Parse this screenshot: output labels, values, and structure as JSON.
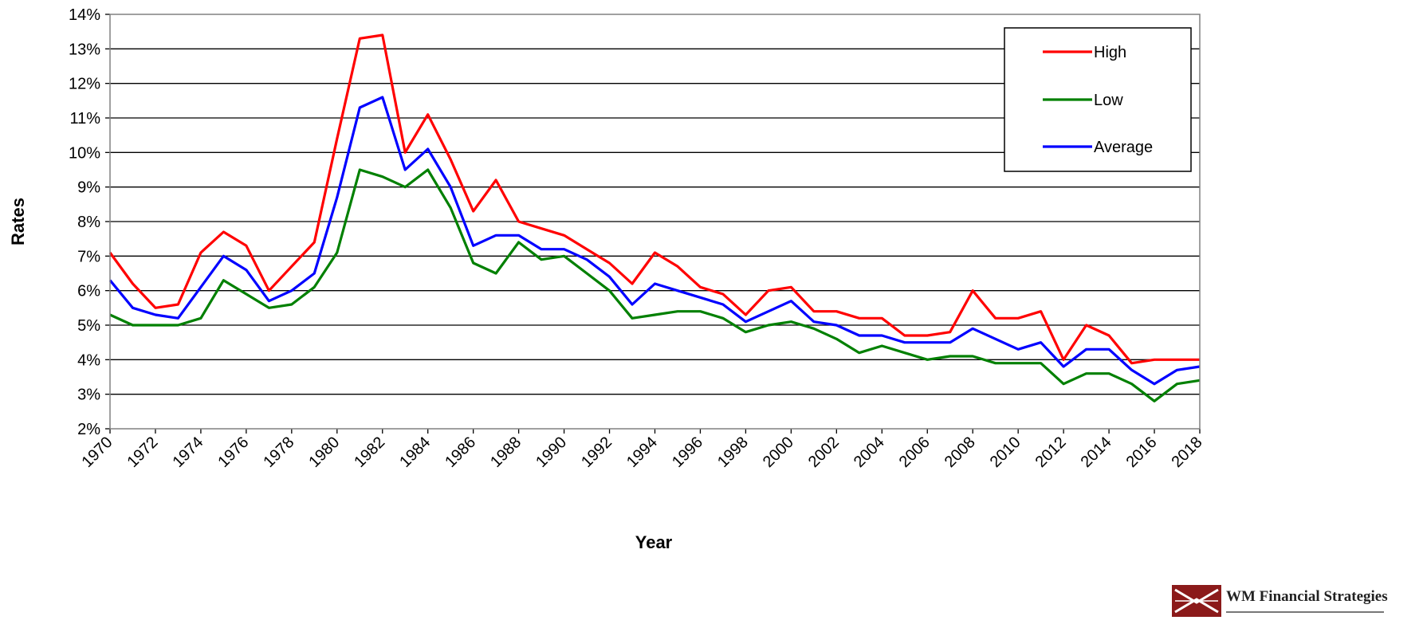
{
  "brand": {
    "name": "WM Financial Strategies",
    "logo_color": "#8b1a1a"
  },
  "chart_data": {
    "type": "line",
    "title": "",
    "xlabel": "Year",
    "ylabel": "Rates",
    "ylim": [
      2,
      14
    ],
    "y_ticks": [
      "2%",
      "3%",
      "4%",
      "5%",
      "6%",
      "7%",
      "8%",
      "9%",
      "10%",
      "11%",
      "12%",
      "13%",
      "14%"
    ],
    "x_ticks": [
      "1970",
      "1972",
      "1974",
      "1976",
      "1978",
      "1980",
      "1982",
      "1984",
      "1986",
      "1988",
      "1990",
      "1992",
      "1994",
      "1996",
      "1998",
      "2000",
      "2002",
      "2004",
      "2006",
      "2008",
      "2010",
      "2012",
      "2014",
      "2016",
      "2018"
    ],
    "grid": "horizontal",
    "legend_position": "top-right",
    "x": [
      1970,
      1971,
      1972,
      1973,
      1974,
      1975,
      1976,
      1977,
      1978,
      1979,
      1980,
      1981,
      1982,
      1983,
      1984,
      1985,
      1986,
      1987,
      1988,
      1989,
      1990,
      1991,
      1992,
      1993,
      1994,
      1995,
      1996,
      1997,
      1998,
      1999,
      2000,
      2001,
      2002,
      2003,
      2004,
      2005,
      2006,
      2007,
      2008,
      2009,
      2010,
      2011,
      2012,
      2013,
      2014,
      2015,
      2016,
      2017,
      2018
    ],
    "series": [
      {
        "name": "High",
        "color": "#ff0000",
        "values": [
          7.1,
          6.2,
          5.5,
          5.6,
          7.1,
          7.7,
          7.3,
          6.0,
          6.7,
          7.4,
          10.4,
          13.3,
          13.4,
          10.0,
          11.1,
          9.8,
          8.3,
          9.2,
          8.0,
          7.8,
          7.6,
          7.2,
          6.8,
          6.2,
          7.1,
          6.7,
          6.1,
          5.9,
          5.3,
          6.0,
          6.1,
          5.4,
          5.4,
          5.2,
          5.2,
          4.7,
          4.7,
          4.8,
          6.0,
          5.2,
          5.2,
          5.4,
          4.0,
          5.0,
          4.7,
          3.9,
          4.0,
          4.0,
          4.0
        ]
      },
      {
        "name": "Low",
        "color": "#008000",
        "values": [
          5.3,
          5.0,
          5.0,
          5.0,
          5.2,
          6.3,
          5.9,
          5.5,
          5.6,
          6.1,
          7.1,
          9.5,
          9.3,
          9.0,
          9.5,
          8.4,
          6.8,
          6.5,
          7.4,
          6.9,
          7.0,
          6.5,
          6.0,
          5.2,
          5.3,
          5.4,
          5.4,
          5.2,
          4.8,
          5.0,
          5.1,
          4.9,
          4.6,
          4.2,
          4.4,
          4.2,
          4.0,
          4.1,
          4.1,
          3.9,
          3.9,
          3.9,
          3.3,
          3.6,
          3.6,
          3.3,
          2.8,
          3.3,
          3.4
        ]
      },
      {
        "name": "Average",
        "color": "#0000ff",
        "values": [
          6.3,
          5.5,
          5.3,
          5.2,
          6.1,
          7.0,
          6.6,
          5.7,
          6.0,
          6.5,
          8.7,
          11.3,
          11.6,
          9.5,
          10.1,
          9.0,
          7.3,
          7.6,
          7.6,
          7.2,
          7.2,
          6.9,
          6.4,
          5.6,
          6.2,
          6.0,
          5.8,
          5.6,
          5.1,
          5.4,
          5.7,
          5.1,
          5.0,
          4.7,
          4.7,
          4.5,
          4.5,
          4.5,
          4.9,
          4.6,
          4.3,
          4.5,
          3.8,
          4.3,
          4.3,
          3.7,
          3.3,
          3.7,
          3.8
        ]
      }
    ]
  }
}
